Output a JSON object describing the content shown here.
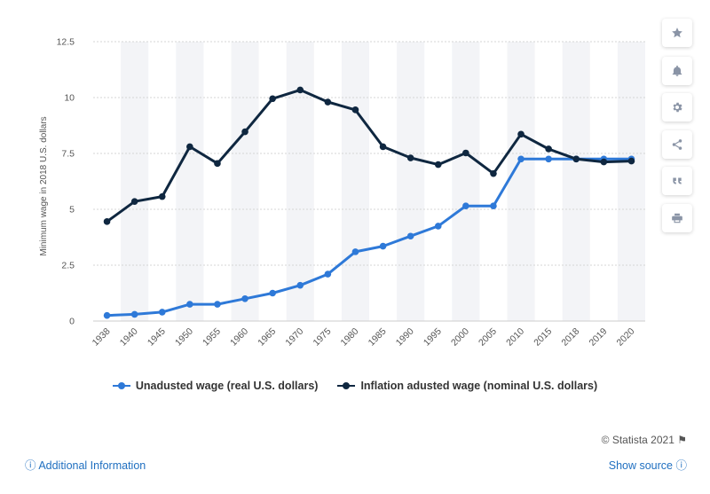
{
  "chart_data": {
    "type": "line",
    "categories": [
      "1938",
      "1940",
      "1945",
      "1950",
      "1955",
      "1960",
      "1965",
      "1970",
      "1975",
      "1980",
      "1985",
      "1990",
      "1995",
      "2000",
      "2005",
      "2010",
      "2015",
      "2018",
      "2019",
      "2020"
    ],
    "series": [
      {
        "name": "Unadusted wage (real U.S. dollars)",
        "color": "#2e79d8",
        "values": [
          0.25,
          0.3,
          0.4,
          0.75,
          0.75,
          1.0,
          1.25,
          1.6,
          2.1,
          3.1,
          3.35,
          3.8,
          4.25,
          5.15,
          5.15,
          7.25,
          7.25,
          7.25,
          7.25,
          7.25
        ]
      },
      {
        "name": "Inflation adusted wage (nominal U.S. dollars)",
        "color": "#0f2740",
        "values": [
          4.45,
          5.35,
          5.57,
          7.8,
          7.05,
          8.47,
          9.95,
          10.34,
          9.8,
          9.45,
          7.8,
          7.3,
          7.0,
          7.52,
          6.6,
          8.36,
          7.7,
          7.25,
          7.12,
          7.16
        ]
      }
    ],
    "ylabel": "Minimum wage in 2018 U.S. dollars",
    "xlabel": "",
    "ylim": [
      0,
      12.5
    ],
    "yticks": [
      "0",
      "2.5",
      "5",
      "7.5",
      "10",
      "12.5"
    ],
    "grid": true,
    "legend_position": "bottom"
  },
  "sidebar_icons": [
    "star-icon",
    "bell-icon",
    "gear-icon",
    "share-icon",
    "quote-icon",
    "print-icon"
  ],
  "footer": {
    "credit": "© Statista 2021",
    "additional_info": "Additional Information",
    "show_source": "Show source"
  }
}
